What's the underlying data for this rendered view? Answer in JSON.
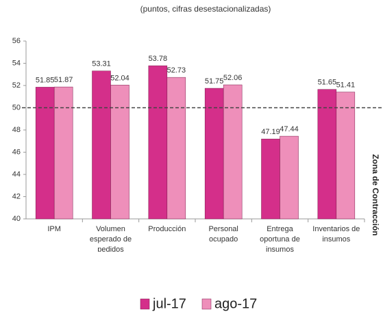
{
  "chart_data": {
    "type": "bar",
    "title": "(puntos, cifras desestacionalizadas)",
    "categories": [
      "IPM",
      "Volumen esperado de pedidos",
      "Producción",
      "Personal ocupado",
      "Entrega oportuna de insumos",
      "Inventarios de insumos"
    ],
    "series": [
      {
        "name": "jul-17",
        "color": "#d42f8a",
        "values": [
          51.85,
          53.31,
          53.78,
          51.75,
          47.19,
          51.65
        ]
      },
      {
        "name": "ago-17",
        "color": "#ee8fba",
        "values": [
          51.87,
          52.04,
          52.73,
          52.06,
          47.44,
          51.41
        ]
      }
    ],
    "ylim": [
      40,
      56
    ],
    "yticks": [
      40,
      42,
      44,
      46,
      48,
      50,
      52,
      54,
      56
    ],
    "threshold": 50,
    "annotation": "Zona de Contracción",
    "legend": "bottom"
  }
}
